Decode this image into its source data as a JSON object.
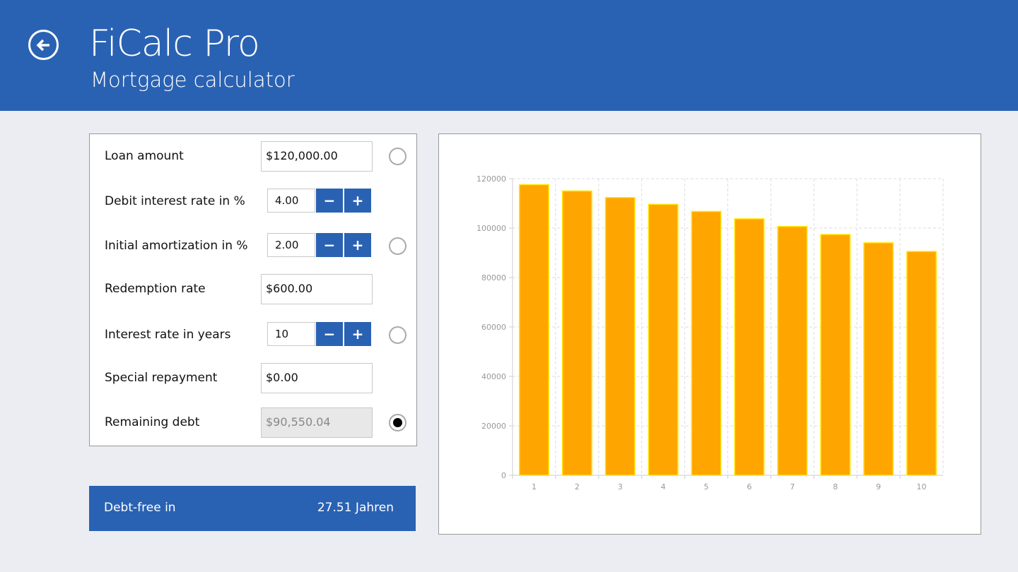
{
  "header": {
    "title": "FiCalc Pro",
    "subtitle": "Mortgage calculator"
  },
  "form": {
    "loan_amount": {
      "label": "Loan amount",
      "value": "$120,000.00"
    },
    "interest_rate": {
      "label": "Debit interest rate in %",
      "value": "4.00"
    },
    "amortization": {
      "label": "Initial amortization in %",
      "value": "2.00"
    },
    "redemption": {
      "label": "Redemption rate",
      "value": "$600.00"
    },
    "interest_years": {
      "label": "Interest rate in years",
      "value": "10"
    },
    "special": {
      "label": "Special repayment",
      "value": "$0.00"
    },
    "remaining": {
      "label": "Remaining debt",
      "value": "$90,550.04"
    },
    "minus": "−",
    "plus": "+"
  },
  "debt_free": {
    "label": "Debt-free in",
    "value": "27.51 Jahren"
  },
  "colors": {
    "accent": "#2a62b3",
    "bar": "#ffa500",
    "bar_border": "#ffe600"
  },
  "chart_data": {
    "type": "bar",
    "categories": [
      "1",
      "2",
      "3",
      "4",
      "5",
      "6",
      "7",
      "8",
      "9",
      "10"
    ],
    "values": [
      117554,
      115009,
      112360,
      109604,
      106735,
      103750,
      100643,
      97410,
      94045,
      90550
    ],
    "yticks": [
      "0",
      "20000",
      "40000",
      "60000",
      "80000",
      "100000",
      "120000"
    ],
    "ylim": [
      0,
      120000
    ],
    "title": "",
    "xlabel": "",
    "ylabel": ""
  }
}
